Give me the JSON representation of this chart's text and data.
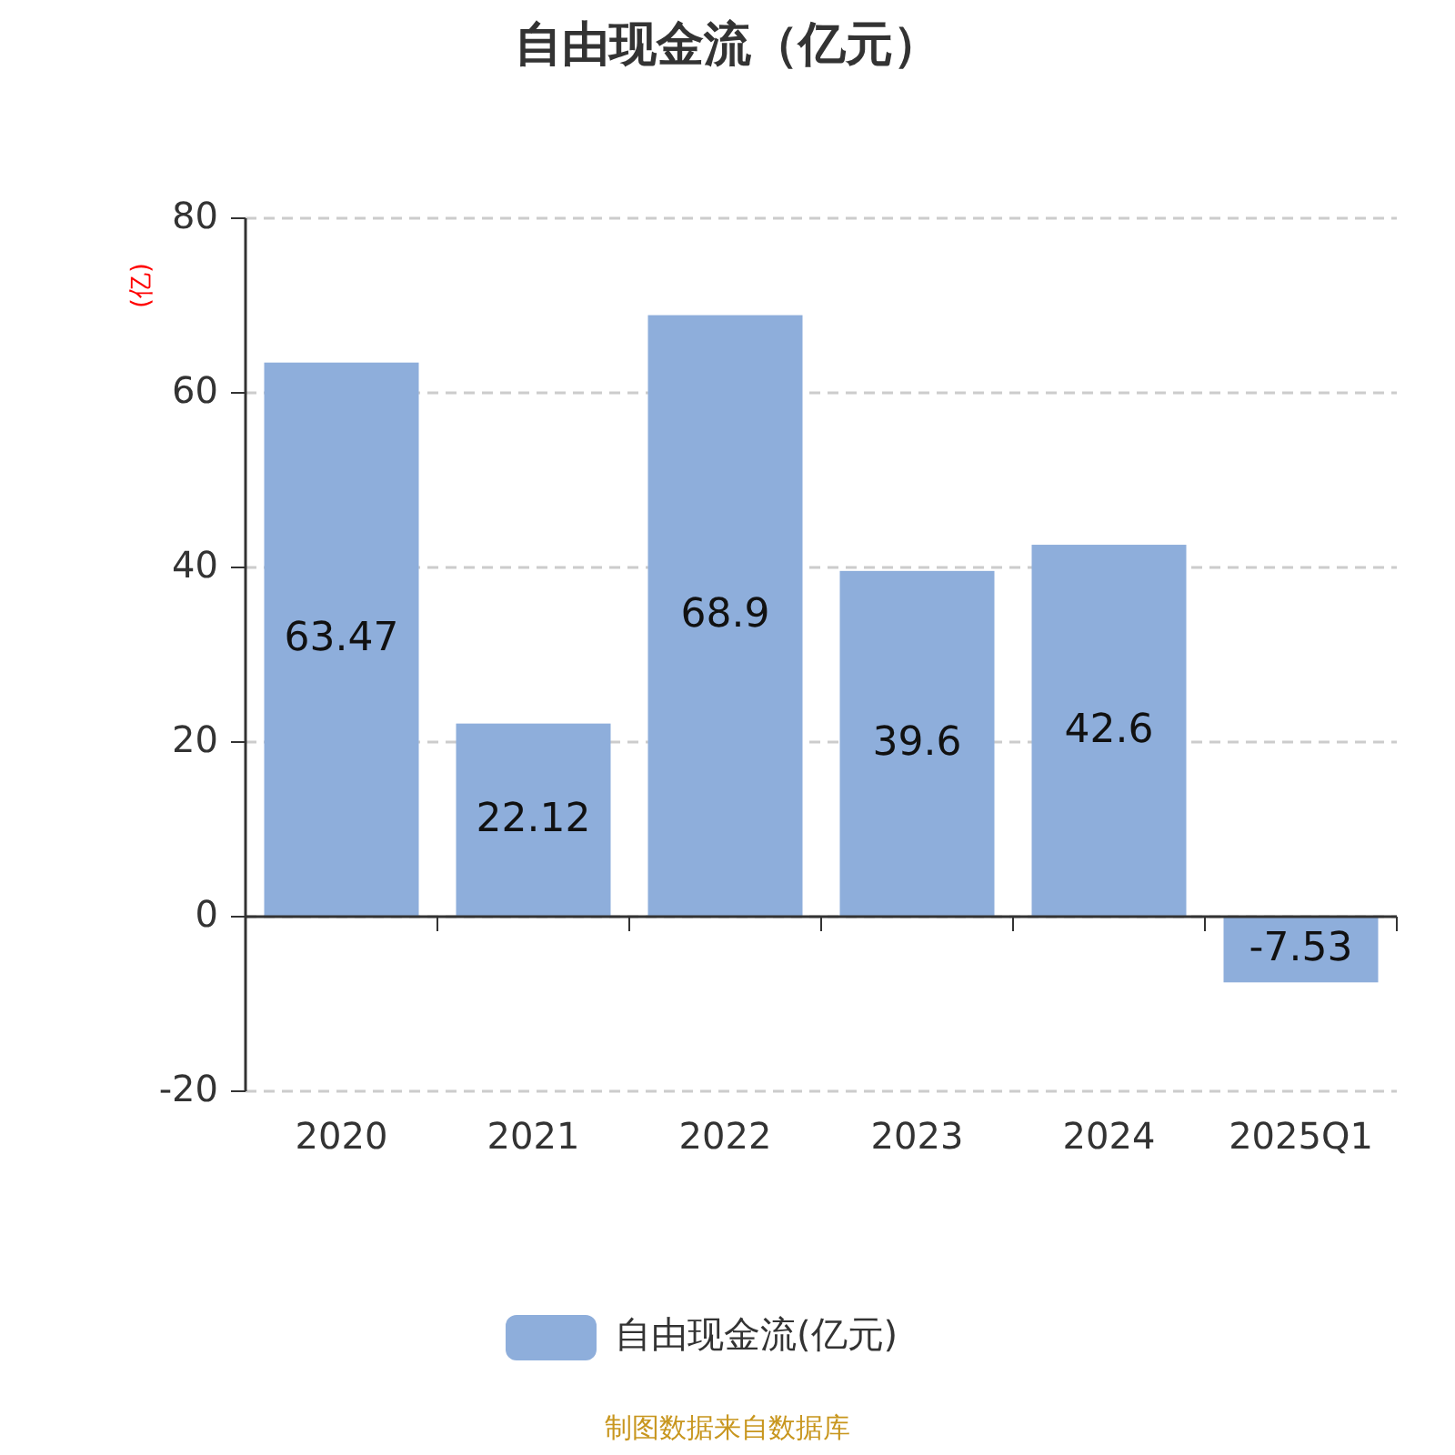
{
  "chart_data": {
    "type": "bar",
    "title": "自由现金流（亿元）",
    "ylabel": "(亿)",
    "categories": [
      "2020",
      "2021",
      "2022",
      "2023",
      "2024",
      "2025Q1"
    ],
    "series": [
      {
        "name": "自由现金流(亿元)",
        "color": "#8eaedb",
        "values": [
          63.47,
          22.12,
          68.9,
          39.6,
          42.6,
          -7.53
        ]
      }
    ],
    "ylim": [
      -20,
      80
    ],
    "yticks": [
      -20,
      0,
      20,
      40,
      60,
      80
    ],
    "grid": "y",
    "data_labels": true,
    "legend": "bottom",
    "annotations": [
      "制图数据来自数据库"
    ]
  }
}
